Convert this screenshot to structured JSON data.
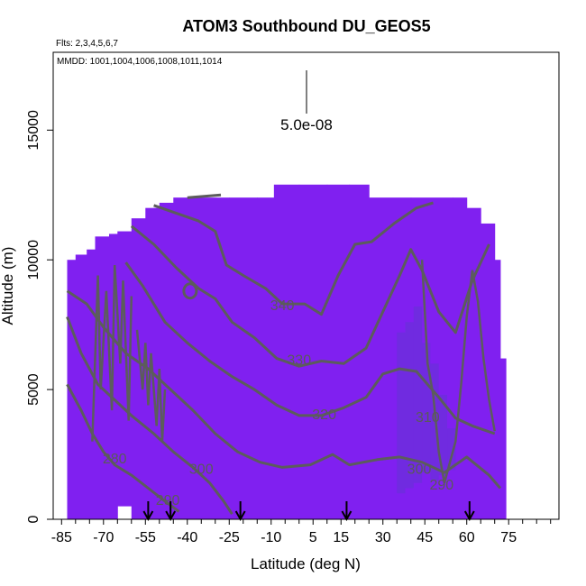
{
  "chart_data": {
    "type": "heatmap",
    "title": "ATOM3 Southbound DU_GEOS5",
    "flights_note": "Flts: 2,3,4,5,6,7",
    "dates_note": "MMDD: 1001,1004,1006,1008,1011,1014",
    "xlabel": "Latitude (deg N)",
    "ylabel": "Altitude (m)",
    "xlim": [
      -88,
      93
    ],
    "ylim": [
      0,
      18000
    ],
    "xticks": [
      -85,
      -70,
      -55,
      -40,
      -25,
      -10,
      5,
      15,
      30,
      45,
      60,
      75
    ],
    "xtick_labels": [
      "-85",
      "-70",
      "-55",
      "-40",
      "-25",
      "-10",
      "5",
      "15",
      "30",
      "45",
      "60",
      "75"
    ],
    "yticks": [
      0,
      5000,
      10000,
      15000
    ],
    "ytick_labels": [
      "0",
      "5000",
      "10000",
      "15000"
    ],
    "scale_label": "5.0e-08",
    "field_color": "#8020f0",
    "enhanced_color": "#6a30d8",
    "contour_color": "#5c5c5c",
    "coverage_profile": [
      [
        -83,
        0,
        10000
      ],
      [
        -80,
        0,
        10200
      ],
      [
        -76,
        0,
        10400
      ],
      [
        -73,
        0,
        10900
      ],
      [
        -68,
        0,
        11000
      ],
      [
        -65,
        500,
        11100
      ],
      [
        -60,
        0,
        11600
      ],
      [
        -55,
        0,
        12000
      ],
      [
        -50,
        0,
        12200
      ],
      [
        -45,
        0,
        12400
      ],
      [
        -35,
        0,
        12400
      ],
      [
        -25,
        0,
        12400
      ],
      [
        -15,
        0,
        12400
      ],
      [
        -9,
        0,
        12900
      ],
      [
        0,
        0,
        12900
      ],
      [
        10,
        0,
        12900
      ],
      [
        18,
        0,
        12900
      ],
      [
        25,
        0,
        12400
      ],
      [
        40,
        0,
        12400
      ],
      [
        55,
        0,
        12400
      ],
      [
        60,
        0,
        12000
      ],
      [
        65,
        0,
        11400
      ],
      [
        70,
        0,
        10000
      ],
      [
        72,
        0,
        6200
      ]
    ],
    "contour_levels": [
      {
        "label": "290",
        "label_lat": 51,
        "label_alt": 1300
      },
      {
        "label": "300",
        "label_lat": -35,
        "label_alt": 1900
      },
      {
        "label": "300",
        "label_lat": 43,
        "label_alt": 1900
      },
      {
        "label": "310",
        "label_lat": 46,
        "label_alt": 3900
      },
      {
        "label": "320",
        "label_lat": 9,
        "label_alt": 4000
      },
      {
        "label": "330",
        "label_lat": 0,
        "label_alt": 6100
      },
      {
        "label": "340",
        "label_lat": -6,
        "label_alt": 8200
      },
      {
        "label": "280",
        "label_lat": -66,
        "label_alt": 2300
      },
      {
        "label": "290",
        "label_lat": -47,
        "label_alt": 700
      }
    ],
    "flight_markers_lat": [
      -54,
      -46,
      -21,
      17,
      61
    ]
  }
}
